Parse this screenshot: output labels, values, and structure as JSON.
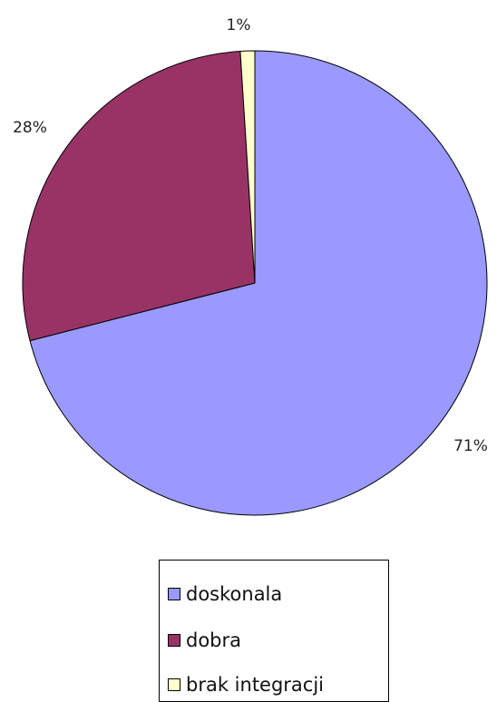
{
  "chart_data": {
    "type": "pie",
    "title": "",
    "slices": [
      {
        "label": "doskonala",
        "value": 71,
        "display": "71%",
        "color": "#9999ff"
      },
      {
        "label": "dobra",
        "value": 28,
        "display": "28%",
        "color": "#993366"
      },
      {
        "label": "brak integracji",
        "value": 1,
        "display": "1%",
        "color": "#ffffcc"
      }
    ],
    "start_angle_deg": 0,
    "direction": "clockwise",
    "legend_position": "bottom"
  }
}
